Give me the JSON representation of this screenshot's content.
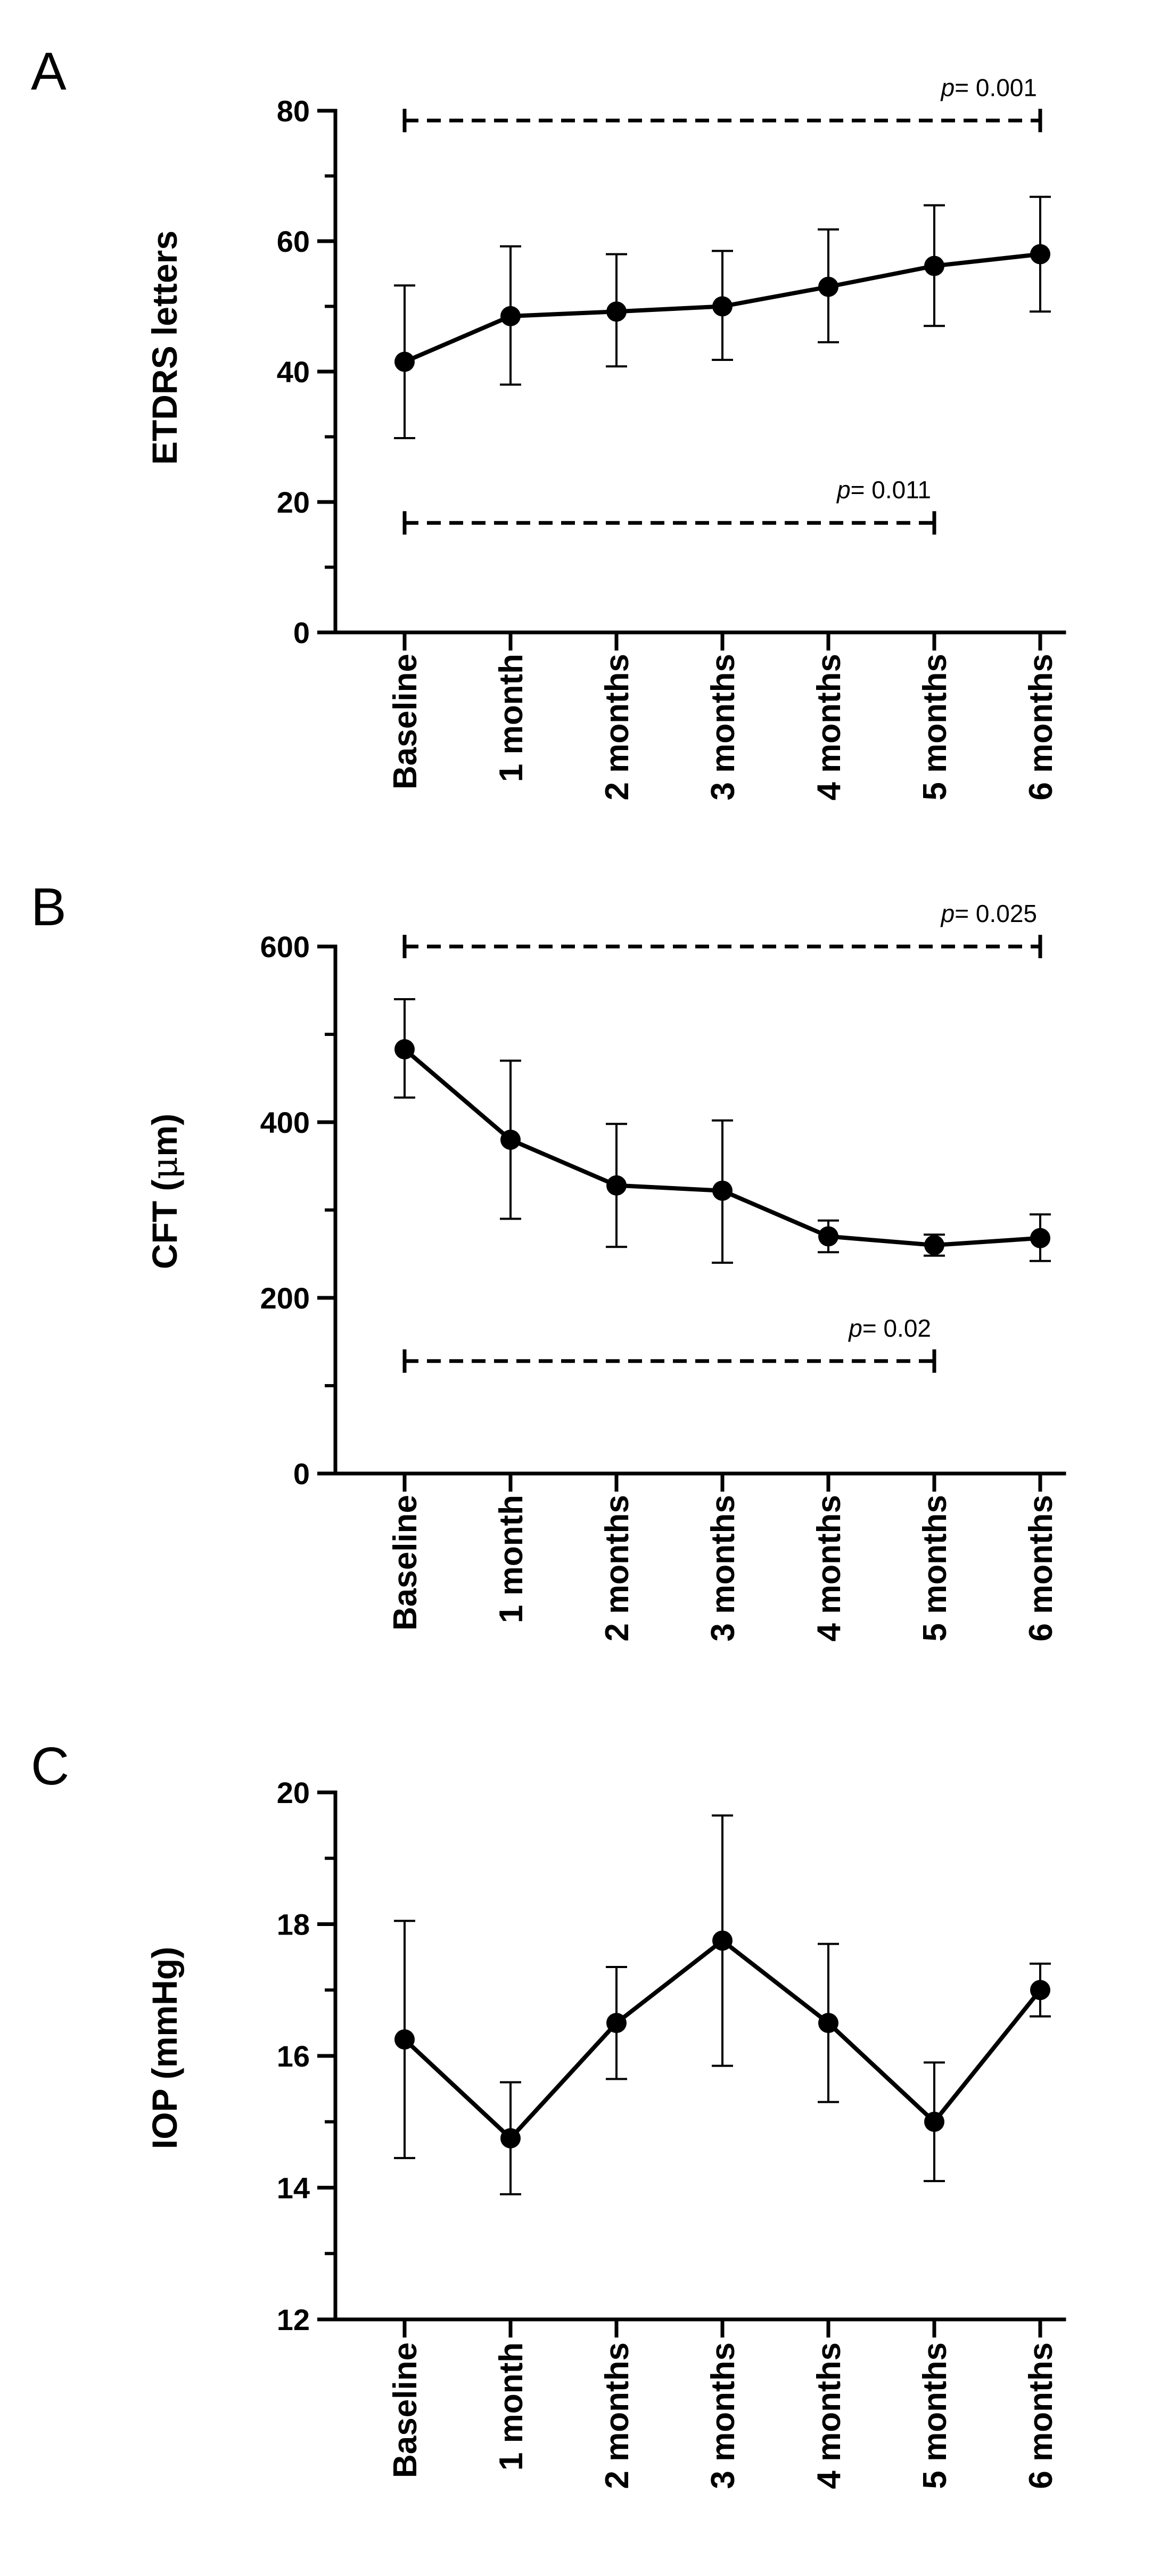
{
  "chart_data": [
    {
      "type": "line",
      "panel": "A",
      "title": "",
      "xlabel": "",
      "ylabel": "ETDRS letters",
      "ylim": [
        0,
        80
      ],
      "yticks": [
        0,
        20,
        40,
        60,
        80
      ],
      "categories": [
        "Baseline",
        "1 month",
        "2 months",
        "3 months",
        "4 months",
        "5 months",
        "6 months"
      ],
      "series": [
        {
          "name": "ETDRS letters",
          "values": [
            41.5,
            48.5,
            49.2,
            50.0,
            53.0,
            56.2,
            58.0
          ],
          "err_low": [
            29.8,
            38.0,
            40.8,
            41.8,
            44.5,
            47.0,
            49.2
          ],
          "err_high": [
            53.2,
            59.2,
            58.0,
            58.5,
            61.8,
            65.5,
            66.8
          ]
        }
      ],
      "annotations": [
        {
          "label": "p",
          "text": "= 0.001",
          "from": "Baseline",
          "to": "6 months",
          "y": 78.5
        },
        {
          "label": "p",
          "text": "= 0.011",
          "from": "Baseline",
          "to": "5 months",
          "y": 16.8
        }
      ],
      "grid": false
    },
    {
      "type": "line",
      "panel": "B",
      "title": "",
      "xlabel": "",
      "ylabel_main": "CFT (",
      "ylabel_unit": "μ",
      "ylabel_end": "m)",
      "ylim": [
        0,
        600
      ],
      "yticks": [
        0,
        200,
        400,
        600
      ],
      "categories": [
        "Baseline",
        "1 month",
        "2 months",
        "3 months",
        "4 months",
        "5 months",
        "6 months"
      ],
      "series": [
        {
          "name": "CFT",
          "values": [
            483,
            380,
            328,
            322,
            270,
            260,
            268
          ],
          "err_low": [
            428,
            290,
            258,
            240,
            252,
            248,
            242
          ],
          "err_high": [
            540,
            470,
            398,
            402,
            288,
            272,
            295
          ]
        }
      ],
      "annotations": [
        {
          "label": "p",
          "text": "= 0.025",
          "from": "Baseline",
          "to": "6 months",
          "y": 600
        },
        {
          "label": "p",
          "text": "= 0.02",
          "from": "Baseline",
          "to": "5 months",
          "y": 128
        }
      ],
      "grid": false
    },
    {
      "type": "line",
      "panel": "C",
      "title": "",
      "xlabel": "",
      "ylabel": "IOP (mmHg)",
      "ylim": [
        12,
        20
      ],
      "yticks": [
        12,
        14,
        16,
        18,
        20
      ],
      "categories": [
        "Baseline",
        "1 month",
        "2 months",
        "3 months",
        "4 months",
        "5 months",
        "6 months"
      ],
      "series": [
        {
          "name": "IOP",
          "values": [
            16.25,
            14.75,
            16.5,
            17.75,
            16.5,
            15.0,
            17.0
          ],
          "err_low": [
            14.45,
            13.9,
            15.65,
            15.85,
            15.3,
            14.1,
            16.6
          ],
          "err_high": [
            18.05,
            15.6,
            17.35,
            19.65,
            17.7,
            15.9,
            17.4
          ]
        }
      ],
      "annotations": [],
      "grid": false
    }
  ]
}
